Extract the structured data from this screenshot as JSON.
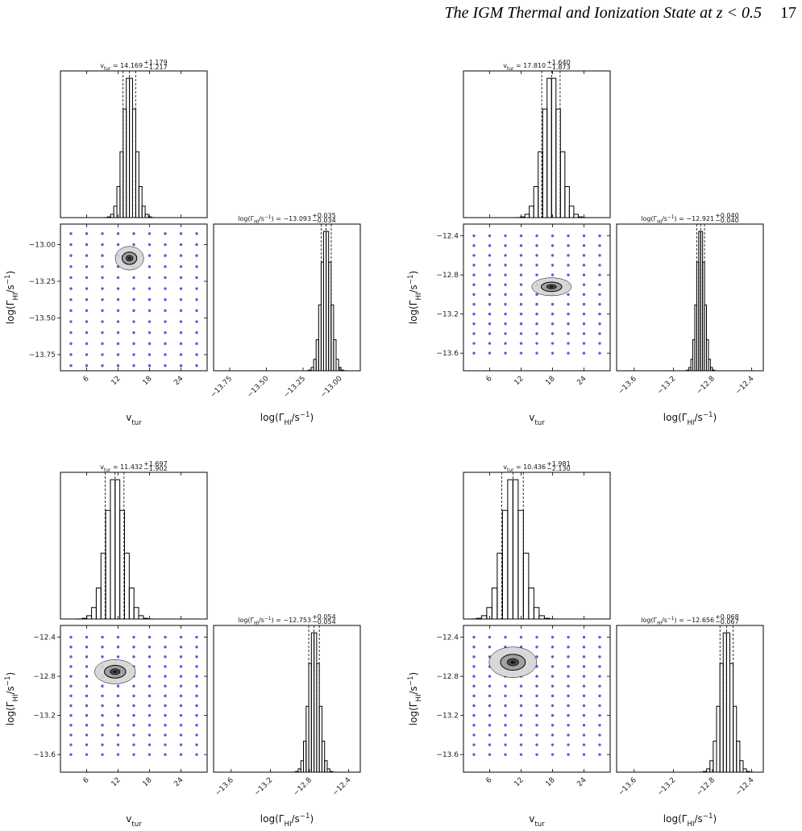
{
  "header": {
    "title": "The IGM Thermal and Ionization State at z < 0.5",
    "page": "17"
  },
  "chart_data": [
    {
      "type": "corner",
      "v_title": {
        "symbol": [
          {
            "text": "v"
          },
          {
            "sub": "tur"
          },
          {
            "text": " = "
          }
        ],
        "value": 14.169,
        "plus": {
          "value": 1.179,
          "label": "+1.179"
        },
        "minus": {
          "value": -1.217,
          "label": "−1.217"
        }
      },
      "g_title": {
        "symbol": [
          {
            "text": "log(Γ"
          },
          {
            "sub": "HI"
          },
          {
            "text": "/s"
          },
          {
            "sup": "−1"
          },
          {
            "text": ") = "
          }
        ],
        "value": {
          "value": -13.093,
          "label": "−13.093"
        },
        "plus": {
          "value": 0.035,
          "label": "+0.035"
        },
        "minus": {
          "value": -0.034,
          "label": "−0.034"
        }
      },
      "x_label": [
        {
          "text": "v"
        },
        {
          "sub": "tur"
        }
      ],
      "y_label": [
        {
          "text": "log(Γ"
        },
        {
          "sub": "HI"
        },
        {
          "text": "/s"
        },
        {
          "sup": "−1"
        },
        {
          "text": ")"
        }
      ],
      "xlim": [
        1,
        29
      ],
      "xticks": [
        6,
        12,
        18,
        24
      ],
      "ylim": [
        -13.86,
        -12.86
      ],
      "yticks": [
        {
          "value": -13,
          "label": "−13.00"
        },
        {
          "value": -13.25,
          "label": "−13.25"
        },
        {
          "value": -13.5,
          "label": "−13.50"
        },
        {
          "value": -13.75,
          "label": "−13.75"
        }
      ],
      "v_hist": {
        "bins": [
          9.37,
          9.97,
          10.57,
          11.17,
          11.77,
          12.37,
          12.97,
          13.57,
          14.17,
          14.77,
          15.37,
          15.97,
          16.57,
          17.17,
          17.77,
          18.37,
          18.97
        ],
        "counts": [
          1,
          5,
          23,
          80,
          216,
          458,
          755,
          969,
          969,
          755,
          458,
          216,
          80,
          23,
          5,
          1
        ]
      },
      "g_hist": {
        "bins": [
          -13.229,
          -13.212,
          -13.195,
          -13.178,
          -13.161,
          -13.144,
          -13.127,
          -13.11,
          -13.093,
          -13.076,
          -13.059,
          -13.042,
          -13.025,
          -13.008,
          -12.991,
          -12.974,
          -12.957
        ],
        "counts": [
          1,
          5,
          23,
          80,
          216,
          458,
          755,
          969,
          969,
          755,
          458,
          216,
          80,
          23,
          5,
          1
        ]
      },
      "grid_x": [
        3,
        6,
        9,
        12,
        15,
        18,
        21,
        24,
        27
      ],
      "grid_y": [
        -12.925,
        -13.0,
        -13.075,
        -13.15,
        -13.225,
        -13.3,
        -13.375,
        -13.45,
        -13.525,
        -13.6,
        -13.675,
        -13.75,
        -13.825
      ],
      "grid_color": "#5b5bd6"
    },
    {
      "type": "corner",
      "v_title": {
        "symbol": [
          {
            "text": "v"
          },
          {
            "sub": "tur"
          },
          {
            "text": " = "
          }
        ],
        "value": {
          "value": 17.81,
          "label": "17.810"
        },
        "plus": {
          "value": 1.64,
          "label": "+1.640"
        },
        "minus": {
          "value": -1.873,
          "label": "−1.873"
        }
      },
      "g_title": {
        "symbol": [
          {
            "text": "log(Γ"
          },
          {
            "sub": "HI"
          },
          {
            "text": "/s"
          },
          {
            "sup": "−1"
          },
          {
            "text": ") = "
          }
        ],
        "value": {
          "value": -12.921,
          "label": "−12.921"
        },
        "plus": {
          "value": 0.04,
          "label": "+0.040"
        },
        "minus": {
          "value": -0.04,
          "label": "−0.040"
        }
      },
      "x_label": [
        {
          "text": "v"
        },
        {
          "sub": "tur"
        }
      ],
      "y_label": [
        {
          "text": "log(Γ"
        },
        {
          "sub": "HI"
        },
        {
          "text": "/s"
        },
        {
          "sup": "−1"
        },
        {
          "text": ")"
        }
      ],
      "xlim": [
        1,
        29
      ],
      "xticks": [
        6,
        12,
        18,
        24
      ],
      "ylim": [
        -13.78,
        -12.28
      ],
      "yticks": [
        {
          "value": -12.4,
          "label": "−12.4"
        },
        {
          "value": -12.8,
          "label": "−12.8"
        },
        {
          "value": -13.2,
          "label": "−13.2"
        },
        {
          "value": -13.6,
          "label": "−13.6"
        }
      ],
      "v_hist": {
        "bins": [
          11.01,
          11.86,
          12.71,
          13.56,
          14.41,
          15.26,
          16.11,
          16.96,
          17.81,
          18.66,
          19.51,
          20.36,
          21.21,
          22.06,
          22.91,
          23.76,
          24.61
        ],
        "counts": [
          1,
          5,
          23,
          80,
          216,
          458,
          755,
          969,
          969,
          755,
          458,
          216,
          80,
          23,
          5,
          1
        ]
      },
      "g_hist": {
        "bins": [
          -13.081,
          -13.061,
          -13.041,
          -13.021,
          -13.001,
          -12.981,
          -12.961,
          -12.941,
          -12.921,
          -12.901,
          -12.881,
          -12.861,
          -12.841,
          -12.821,
          -12.801,
          -12.781,
          -12.761
        ],
        "counts": [
          1,
          5,
          23,
          80,
          216,
          458,
          755,
          969,
          969,
          755,
          458,
          216,
          80,
          23,
          5,
          1
        ]
      },
      "grid_x": [
        3,
        6,
        9,
        12,
        15,
        18,
        21,
        24,
        27
      ],
      "grid_y": [
        -12.4,
        -12.5,
        -12.6,
        -12.7,
        -12.8,
        -12.9,
        -13.0,
        -13.1,
        -13.2,
        -13.3,
        -13.4,
        -13.5,
        -13.6
      ],
      "grid_color": "#5b5bd6"
    },
    {
      "type": "corner",
      "v_title": {
        "symbol": [
          {
            "text": "v"
          },
          {
            "sub": "tur"
          },
          {
            "text": " = "
          }
        ],
        "value": 11.432,
        "plus": {
          "value": 1.697,
          "label": "+1.697"
        },
        "minus": {
          "value": -1.902,
          "label": "−1.902"
        }
      },
      "g_title": {
        "symbol": [
          {
            "text": "log(Γ"
          },
          {
            "sub": "HI"
          },
          {
            "text": "/s"
          },
          {
            "sup": "−1"
          },
          {
            "text": ") = "
          }
        ],
        "value": {
          "value": -12.753,
          "label": "−12.753"
        },
        "plus": {
          "value": 0.054,
          "label": "+0.054"
        },
        "minus": {
          "value": -0.054,
          "label": "−0.054"
        }
      },
      "x_label": [
        {
          "text": "v"
        },
        {
          "sub": "tur"
        }
      ],
      "y_label": [
        {
          "text": "log(Γ"
        },
        {
          "sub": "HI"
        },
        {
          "text": "/s"
        },
        {
          "sup": "−1"
        },
        {
          "text": ")"
        }
      ],
      "xlim": [
        1,
        29
      ],
      "xticks": [
        6,
        12,
        18,
        24
      ],
      "ylim": [
        -13.78,
        -12.28
      ],
      "yticks": [
        {
          "value": -12.4,
          "label": "−12.4"
        },
        {
          "value": -12.8,
          "label": "−12.8"
        },
        {
          "value": -13.2,
          "label": "−13.2"
        },
        {
          "value": -13.6,
          "label": "−13.6"
        }
      ],
      "v_hist": {
        "bins": [
          4.23,
          5.13,
          6.03,
          6.93,
          7.83,
          8.73,
          9.63,
          10.53,
          11.43,
          12.33,
          13.23,
          14.13,
          15.03,
          15.93,
          16.83,
          17.73,
          18.63
        ],
        "counts": [
          1,
          5,
          23,
          80,
          216,
          458,
          755,
          969,
          969,
          755,
          458,
          216,
          80,
          23,
          5,
          1
        ]
      },
      "g_hist": {
        "bins": [
          -12.969,
          -12.942,
          -12.915,
          -12.888,
          -12.861,
          -12.834,
          -12.807,
          -12.78,
          -12.753,
          -12.726,
          -12.699,
          -12.672,
          -12.645,
          -12.618,
          -12.591,
          -12.564,
          -12.537
        ],
        "counts": [
          1,
          5,
          23,
          80,
          216,
          458,
          755,
          969,
          969,
          755,
          458,
          216,
          80,
          23,
          5,
          1
        ]
      },
      "grid_x": [
        3,
        6,
        9,
        12,
        15,
        18,
        21,
        24,
        27
      ],
      "grid_y": [
        -12.4,
        -12.5,
        -12.6,
        -12.7,
        -12.8,
        -12.9,
        -13.0,
        -13.1,
        -13.2,
        -13.3,
        -13.4,
        -13.5,
        -13.6
      ],
      "grid_color": "#5b5bd6"
    },
    {
      "type": "corner",
      "v_title": {
        "symbol": [
          {
            "text": "v"
          },
          {
            "sub": "tur"
          },
          {
            "text": " = "
          }
        ],
        "value": 10.436,
        "plus": {
          "value": 1.981,
          "label": "+1.981"
        },
        "minus": {
          "value": -2.13,
          "label": "−2.130"
        }
      },
      "g_title": {
        "symbol": [
          {
            "text": "log(Γ"
          },
          {
            "sub": "HI"
          },
          {
            "text": "/s"
          },
          {
            "sup": "−1"
          },
          {
            "text": ") = "
          }
        ],
        "value": {
          "value": -12.656,
          "label": "−12.656"
        },
        "plus": {
          "value": 0.068,
          "label": "+0.068"
        },
        "minus": {
          "value": -0.067,
          "label": "−0.067"
        }
      },
      "x_label": [
        {
          "text": "v"
        },
        {
          "sub": "tur"
        }
      ],
      "y_label": [
        {
          "text": "log(Γ"
        },
        {
          "sub": "HI"
        },
        {
          "text": "/s"
        },
        {
          "sup": "−1"
        },
        {
          "text": ")"
        }
      ],
      "xlim": [
        1,
        29
      ],
      "xticks": [
        6,
        12,
        18,
        24
      ],
      "ylim": [
        -13.78,
        -12.28
      ],
      "yticks": [
        {
          "value": -12.4,
          "label": "−12.4"
        },
        {
          "value": -12.8,
          "label": "−12.8"
        },
        {
          "value": -13.2,
          "label": "−13.2"
        },
        {
          "value": -13.6,
          "label": "−13.6"
        }
      ],
      "v_hist": {
        "bins": [
          2.44,
          3.44,
          4.44,
          5.44,
          6.44,
          7.44,
          8.44,
          9.44,
          10.44,
          11.44,
          12.44,
          13.44,
          14.44,
          15.44,
          16.44,
          17.44,
          18.44
        ],
        "counts": [
          1,
          5,
          23,
          80,
          216,
          458,
          755,
          969,
          969,
          755,
          458,
          216,
          80,
          23,
          5,
          1
        ]
      },
      "g_hist": {
        "bins": [
          -12.928,
          -12.894,
          -12.86,
          -12.826,
          -12.792,
          -12.758,
          -12.724,
          -12.69,
          -12.656,
          -12.622,
          -12.588,
          -12.554,
          -12.52,
          -12.486,
          -12.452,
          -12.418,
          -12.384
        ],
        "counts": [
          1,
          5,
          23,
          80,
          216,
          458,
          755,
          969,
          969,
          755,
          458,
          216,
          80,
          23,
          5,
          1
        ]
      },
      "grid_x": [
        3,
        6,
        9,
        12,
        15,
        18,
        21,
        24,
        27
      ],
      "grid_y": [
        -12.4,
        -12.5,
        -12.6,
        -12.7,
        -12.8,
        -12.9,
        -13.0,
        -13.1,
        -13.2,
        -13.3,
        -13.4,
        -13.5,
        -13.6
      ],
      "grid_color": "#5b5bd6"
    }
  ]
}
